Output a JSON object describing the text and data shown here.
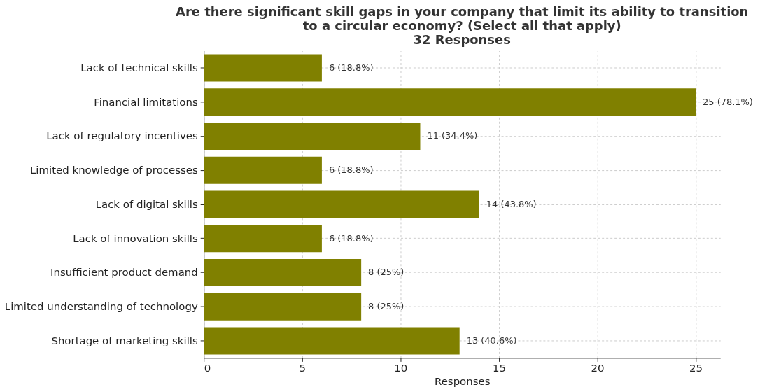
{
  "chart_data": {
    "type": "bar",
    "orientation": "horizontal",
    "title": "Are there significant skill gaps in your company that limit its ability to transition\nto a circular economy? (Select all that apply)\n32 Responses",
    "xlabel": "Responses",
    "categories": [
      "Lack of technical skills",
      "Financial limitations",
      "Lack of regulatory incentives",
      "Limited knowledge of processes",
      "Lack of digital skills",
      "Lack of innovation skills",
      "Insufficient product demand",
      "Limited understanding of technology",
      "Shortage of marketing skills"
    ],
    "values": [
      6,
      25,
      11,
      6,
      14,
      6,
      8,
      8,
      13
    ],
    "value_labels": [
      "6 (18.8%)",
      "25 (78.1%)",
      "11 (34.4%)",
      "6 (18.8%)",
      "14 (43.8%)",
      "6 (18.8%)",
      "8 (25%)",
      "8 (25%)",
      "13 (40.6%)"
    ],
    "color": "#808000",
    "xlim": [
      0,
      26.25
    ],
    "xticks": [
      0,
      5,
      10,
      15,
      20,
      25
    ],
    "grid": true
  }
}
